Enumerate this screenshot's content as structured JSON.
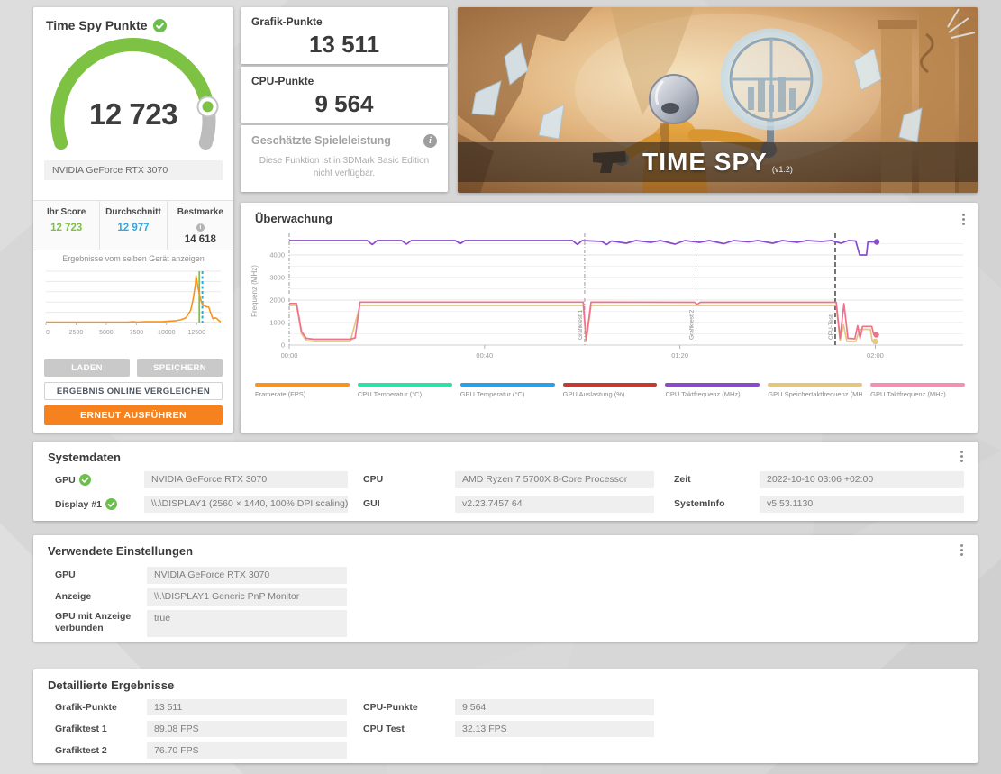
{
  "colors": {
    "green": "#7dc242",
    "blue": "#2fa9e0",
    "orange": "#f5821f",
    "histogram": "#f7941e"
  },
  "score_panel": {
    "title": "Time Spy Punkte",
    "score": "12 723",
    "gpu_name": "NVIDIA GeForce RTX 3070",
    "gauge": {
      "fraction": 0.8704,
      "color": "#7dc242",
      "rest_color": "#bcbcbc"
    },
    "comparison": {
      "columns": [
        {
          "label": "Ihr Score",
          "value": "12 723",
          "color": "#7dc242"
        },
        {
          "label": "Durchschnitt",
          "value": "12 977",
          "color": "#2fa9e0"
        },
        {
          "label": "Bestmarke",
          "value": "14 618",
          "color": "#3c3c3c",
          "info": true
        }
      ]
    },
    "same_device_link": "Ergebnisse vom selben Gerät anzeigen",
    "buttons": {
      "load": "LADEN",
      "save": "SPEICHERN",
      "compare": "ERGEBNIS ONLINE VERGLEICHEN",
      "rerun": "ERNEUT AUSFÜHREN"
    }
  },
  "graphics_card": {
    "title": "Grafik-Punkte",
    "value": "13 511"
  },
  "cpu_card": {
    "title": "CPU-Punkte",
    "value": "9 564"
  },
  "estimated_card": {
    "title": "Geschätzte Spieleleistung",
    "body": "Diese Funktion ist in 3DMark Basic Edition nicht verfügbar."
  },
  "hero": {
    "title": "TIME SPY",
    "version": "(v1.2)"
  },
  "monitor": {
    "title": "Überwachung"
  },
  "systemdata": {
    "title": "Systemdaten",
    "items": [
      {
        "label": "GPU",
        "value": "NVIDIA GeForce RTX 3070",
        "check": true
      },
      {
        "label": "CPU",
        "value": "AMD Ryzen 7 5700X 8-Core Processor",
        "check": false
      },
      {
        "label": "Zeit",
        "value": "2022-10-10 03:06 +02:00",
        "check": false
      },
      {
        "label": "Display #1",
        "value": "\\\\.\\DISPLAY1 (2560 × 1440, 100% DPI scaling)",
        "check": true
      },
      {
        "label": "GUI",
        "value": "v2.23.7457 64",
        "check": false
      },
      {
        "label": "SystemInfo",
        "value": "v5.53.1130",
        "check": false
      }
    ]
  },
  "settings": {
    "title": "Verwendete Einstellungen",
    "items": [
      {
        "label": "GPU",
        "value": "NVIDIA GeForce RTX 3070"
      },
      {
        "label": "Anzeige",
        "value": "\\\\.\\DISPLAY1 Generic PnP Monitor"
      },
      {
        "label": "GPU mit Anzeige verbunden",
        "value": "true"
      }
    ]
  },
  "details": {
    "title": "Detaillierte Ergebnisse",
    "left": [
      {
        "label": "Grafik-Punkte",
        "value": "13 511"
      },
      {
        "label": "Grafiktest 1",
        "value": "89.08 FPS"
      },
      {
        "label": "Grafiktest 2",
        "value": "76.70 FPS"
      }
    ],
    "right": [
      {
        "label": "CPU-Punkte",
        "value": "9 564"
      },
      {
        "label": "CPU Test",
        "value": "32.13 FPS"
      }
    ]
  },
  "chart_data": [
    {
      "id": "score-distribution",
      "type": "area",
      "title": "Ergebnisse vom selben Gerät anzeigen",
      "xlim": [
        0,
        14500
      ],
      "xticks": [
        {
          "v": 0,
          "label": "0"
        },
        {
          "v": 2500,
          "label": "2500"
        },
        {
          "v": 5000,
          "label": "5000"
        },
        {
          "v": 7500,
          "label": "7500"
        },
        {
          "v": 10000,
          "label": "10000"
        },
        {
          "v": 12500,
          "label": "12500"
        }
      ],
      "x": [
        0,
        6800,
        7200,
        7600,
        8200,
        9000,
        9600,
        10200,
        10800,
        11200,
        11600,
        12000,
        12200,
        12400,
        12450,
        12600,
        12800,
        12950,
        13100,
        13300,
        13500,
        13700,
        13850,
        14000,
        14150,
        14350,
        14500
      ],
      "y": [
        1,
        1,
        2,
        1,
        2,
        2,
        2,
        3,
        4,
        6,
        10,
        26,
        48,
        82,
        100,
        76,
        52,
        40,
        36,
        34,
        33,
        18,
        8,
        10,
        9,
        4,
        2
      ],
      "marker_your_score": 12723,
      "marker_average": 12977,
      "color": "#f7941e",
      "grid": true,
      "legend_position": "none"
    },
    {
      "id": "monitoring",
      "type": "line",
      "title": "Überwachung",
      "ylabel": "Frequenz (MHz)",
      "ylim": [
        0,
        4800
      ],
      "yticks": [
        0,
        1000,
        2000,
        3000,
        4000
      ],
      "xlim": [
        0,
        138
      ],
      "xticks": [
        {
          "t": 0,
          "label": "00:00"
        },
        {
          "t": 40,
          "label": "00:40"
        },
        {
          "t": 80,
          "label": "01:20"
        },
        {
          "t": 120,
          "label": "02:00"
        }
      ],
      "phase_lines": [
        {
          "t": 0,
          "label": "",
          "dark": false
        },
        {
          "t": 60.5,
          "label": "Grafiktest 1",
          "dark": false
        },
        {
          "t": 83.3,
          "label": "Grafiktest 2",
          "dark": false
        },
        {
          "t": 111.8,
          "label": "CPU-Test",
          "dark": true
        }
      ],
      "series": [
        {
          "name": "GPU Speichertaktfrequenz (MHz)",
          "color": "#e3c77e",
          "end_dot": true,
          "points": [
            [
              0,
              1760
            ],
            [
              1.5,
              1760
            ],
            [
              2.5,
              500
            ],
            [
              3.5,
              200
            ],
            [
              5,
              160
            ],
            [
              12.5,
              160
            ],
            [
              14.5,
              1760
            ],
            [
              60.2,
              1760
            ],
            [
              60.8,
              160
            ],
            [
              61.8,
              1760
            ],
            [
              112,
              1760
            ],
            [
              112.8,
              200
            ],
            [
              113.5,
              900
            ],
            [
              114.2,
              160
            ],
            [
              116,
              160
            ],
            [
              116.8,
              700
            ],
            [
              119,
              700
            ],
            [
              119.4,
              160
            ],
            [
              120,
              160
            ]
          ]
        },
        {
          "name": "GPU Taktfrequenz (MHz)",
          "color": "#f0718f",
          "end_dot": true,
          "points": [
            [
              0,
              1850
            ],
            [
              1.5,
              1850
            ],
            [
              2.5,
              600
            ],
            [
              3.5,
              300
            ],
            [
              5,
              260
            ],
            [
              12.5,
              260
            ],
            [
              13.5,
              320
            ],
            [
              14.5,
              1910
            ],
            [
              60.2,
              1910
            ],
            [
              60.8,
              250
            ],
            [
              61.8,
              1910
            ],
            [
              83,
              1900
            ],
            [
              83.5,
              1810
            ],
            [
              84.2,
              1900
            ],
            [
              112,
              1900
            ],
            [
              112.8,
              300
            ],
            [
              113.6,
              1840
            ],
            [
              114.4,
              300
            ],
            [
              115.8,
              280
            ],
            [
              116.4,
              860
            ],
            [
              116.9,
              300
            ],
            [
              117.4,
              830
            ],
            [
              119.3,
              830
            ],
            [
              119.7,
              460
            ],
            [
              120.2,
              460
            ]
          ]
        },
        {
          "name": "CPU Taktfrequenz (MHz)",
          "color": "#8a4bc9",
          "end_dot": true,
          "points": [
            [
              0,
              4640
            ],
            [
              16,
              4640
            ],
            [
              17,
              4460
            ],
            [
              18,
              4640
            ],
            [
              23,
              4640
            ],
            [
              24,
              4480
            ],
            [
              25,
              4640
            ],
            [
              34,
              4640
            ],
            [
              35,
              4500
            ],
            [
              36,
              4640
            ],
            [
              56,
              4640
            ],
            [
              58,
              4640
            ],
            [
              59,
              4470
            ],
            [
              60,
              4640
            ],
            [
              64,
              4600
            ],
            [
              65,
              4460
            ],
            [
              66,
              4620
            ],
            [
              69,
              4520
            ],
            [
              71,
              4640
            ],
            [
              74,
              4560
            ],
            [
              76,
              4640
            ],
            [
              79,
              4480
            ],
            [
              81,
              4640
            ],
            [
              84,
              4560
            ],
            [
              86,
              4640
            ],
            [
              89,
              4500
            ],
            [
              91,
              4640
            ],
            [
              94,
              4580
            ],
            [
              96,
              4640
            ],
            [
              99,
              4520
            ],
            [
              101,
              4640
            ],
            [
              104,
              4560
            ],
            [
              106,
              4640
            ],
            [
              109,
              4600
            ],
            [
              111,
              4640
            ],
            [
              113,
              4520
            ],
            [
              114.5,
              4640
            ],
            [
              116,
              4620
            ],
            [
              116.8,
              4000
            ],
            [
              118.2,
              4000
            ],
            [
              118.5,
              4580
            ],
            [
              120.3,
              4580
            ]
          ]
        }
      ],
      "legend": [
        {
          "label": "Framerate (FPS)",
          "color": "#f7941e"
        },
        {
          "label": "CPU Temperatur (°C)",
          "color": "#2fe0a8"
        },
        {
          "label": "GPU Temperatur (°C)",
          "color": "#2b9fe8"
        },
        {
          "label": "GPU Auslastung (%)",
          "color": "#c23b33"
        },
        {
          "label": "CPU Taktfrequenz (MHz)",
          "color": "#8a4bc9"
        },
        {
          "label": "GPU Speichertaktfrequenz (MHz)",
          "color": "#e3c77e"
        },
        {
          "label": "GPU Taktfrequenz (MHz)",
          "color": "#f291b0"
        }
      ],
      "grid": true,
      "legend_position": "bottom"
    }
  ]
}
